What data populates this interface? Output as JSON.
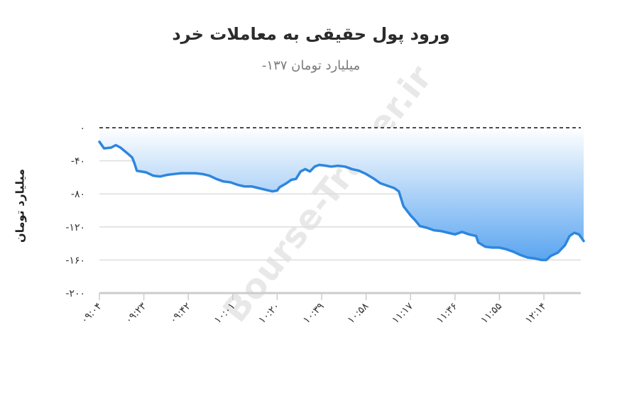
{
  "header": {
    "title": "ورود پول حقیقی به معاملات خرد",
    "subtitle": "میلیارد تومان ۱۳۷-"
  },
  "watermark": "Bourse-Trader.ir",
  "colors": {
    "line": "#2e86de",
    "area_top": "#ffffff",
    "area_bottom": "#5aa5f0",
    "grid": "#dddddd",
    "zero_line": "#111111"
  },
  "chart_data": {
    "type": "area",
    "title": "ورود پول حقیقی به معاملات خرد",
    "subtitle": "میلیارد تومان ۱۳۷-",
    "xlabel": "",
    "ylabel": "میلیارد تومان",
    "ylim": [
      -200,
      0
    ],
    "yticks": [
      0,
      -40,
      -80,
      -120,
      -160,
      -200
    ],
    "ytick_labels": [
      "۰",
      "-۴۰",
      "-۸۰",
      "-۱۲۰",
      "-۱۶۰",
      "-۲۰۰"
    ],
    "xtick_labels": [
      "۰۹:۰۴",
      "۰۹:۲۳",
      "۰۹:۴۲",
      "۱۰:۰۱",
      "۱۰:۲۰",
      "۱۰:۳۹",
      "۱۰:۵۸",
      "۱۱:۱۷",
      "۱۱:۳۶",
      "۱۱:۵۵",
      "۱۲:۱۴"
    ],
    "xticks_minutes": [
      "09:04",
      "09:23",
      "09:42",
      "10:01",
      "10:20",
      "10:39",
      "10:58",
      "11:17",
      "11:36",
      "11:55",
      "12:14"
    ],
    "grid": true,
    "zero_line": "dashed",
    "legend": "none",
    "series": [
      {
        "name": "ورود پول حقیقی",
        "x_minutes_from_0904": [
          0,
          2,
          5,
          7,
          9,
          12,
          14,
          15,
          16,
          20,
          23,
          26,
          29,
          32,
          35,
          38,
          41,
          44,
          47,
          50,
          53,
          56,
          59,
          62,
          65,
          68,
          71,
          74,
          76,
          77,
          80,
          82,
          84,
          86,
          88,
          90,
          92,
          94,
          97,
          99,
          102,
          105,
          108,
          111,
          114,
          117,
          120,
          123,
          126,
          128,
          130,
          133,
          135,
          137,
          140,
          143,
          146,
          149,
          152,
          155,
          158,
          161,
          162,
          165,
          168,
          171,
          174,
          177,
          180,
          183,
          186,
          189,
          191,
          193,
          196,
          199,
          201,
          203,
          205,
          206,
          207
        ],
        "values": [
          -17,
          -25,
          -24,
          -21,
          -24,
          -31,
          -36,
          -43,
          -52,
          -54,
          -58,
          -59,
          -57,
          -56,
          -55,
          -55,
          -55,
          -56,
          -58,
          -62,
          -65,
          -66,
          -69,
          -71,
          -71,
          -73,
          -75,
          -77,
          -76,
          -72,
          -67,
          -63,
          -62,
          -53,
          -50,
          -53,
          -47,
          -45,
          -46,
          -47,
          -46,
          -47,
          -50,
          -52,
          -56,
          -61,
          -67,
          -70,
          -73,
          -77,
          -95,
          -106,
          -112,
          -119,
          -121,
          -124,
          -125,
          -127,
          -129,
          -126,
          -129,
          -131,
          -139,
          -144,
          -145,
          -145,
          -147,
          -150,
          -154,
          -157,
          -158,
          -160,
          -160,
          -155,
          -151,
          -142,
          -131,
          -127,
          -129,
          -133,
          -137
        ]
      }
    ],
    "last_value": -137
  }
}
